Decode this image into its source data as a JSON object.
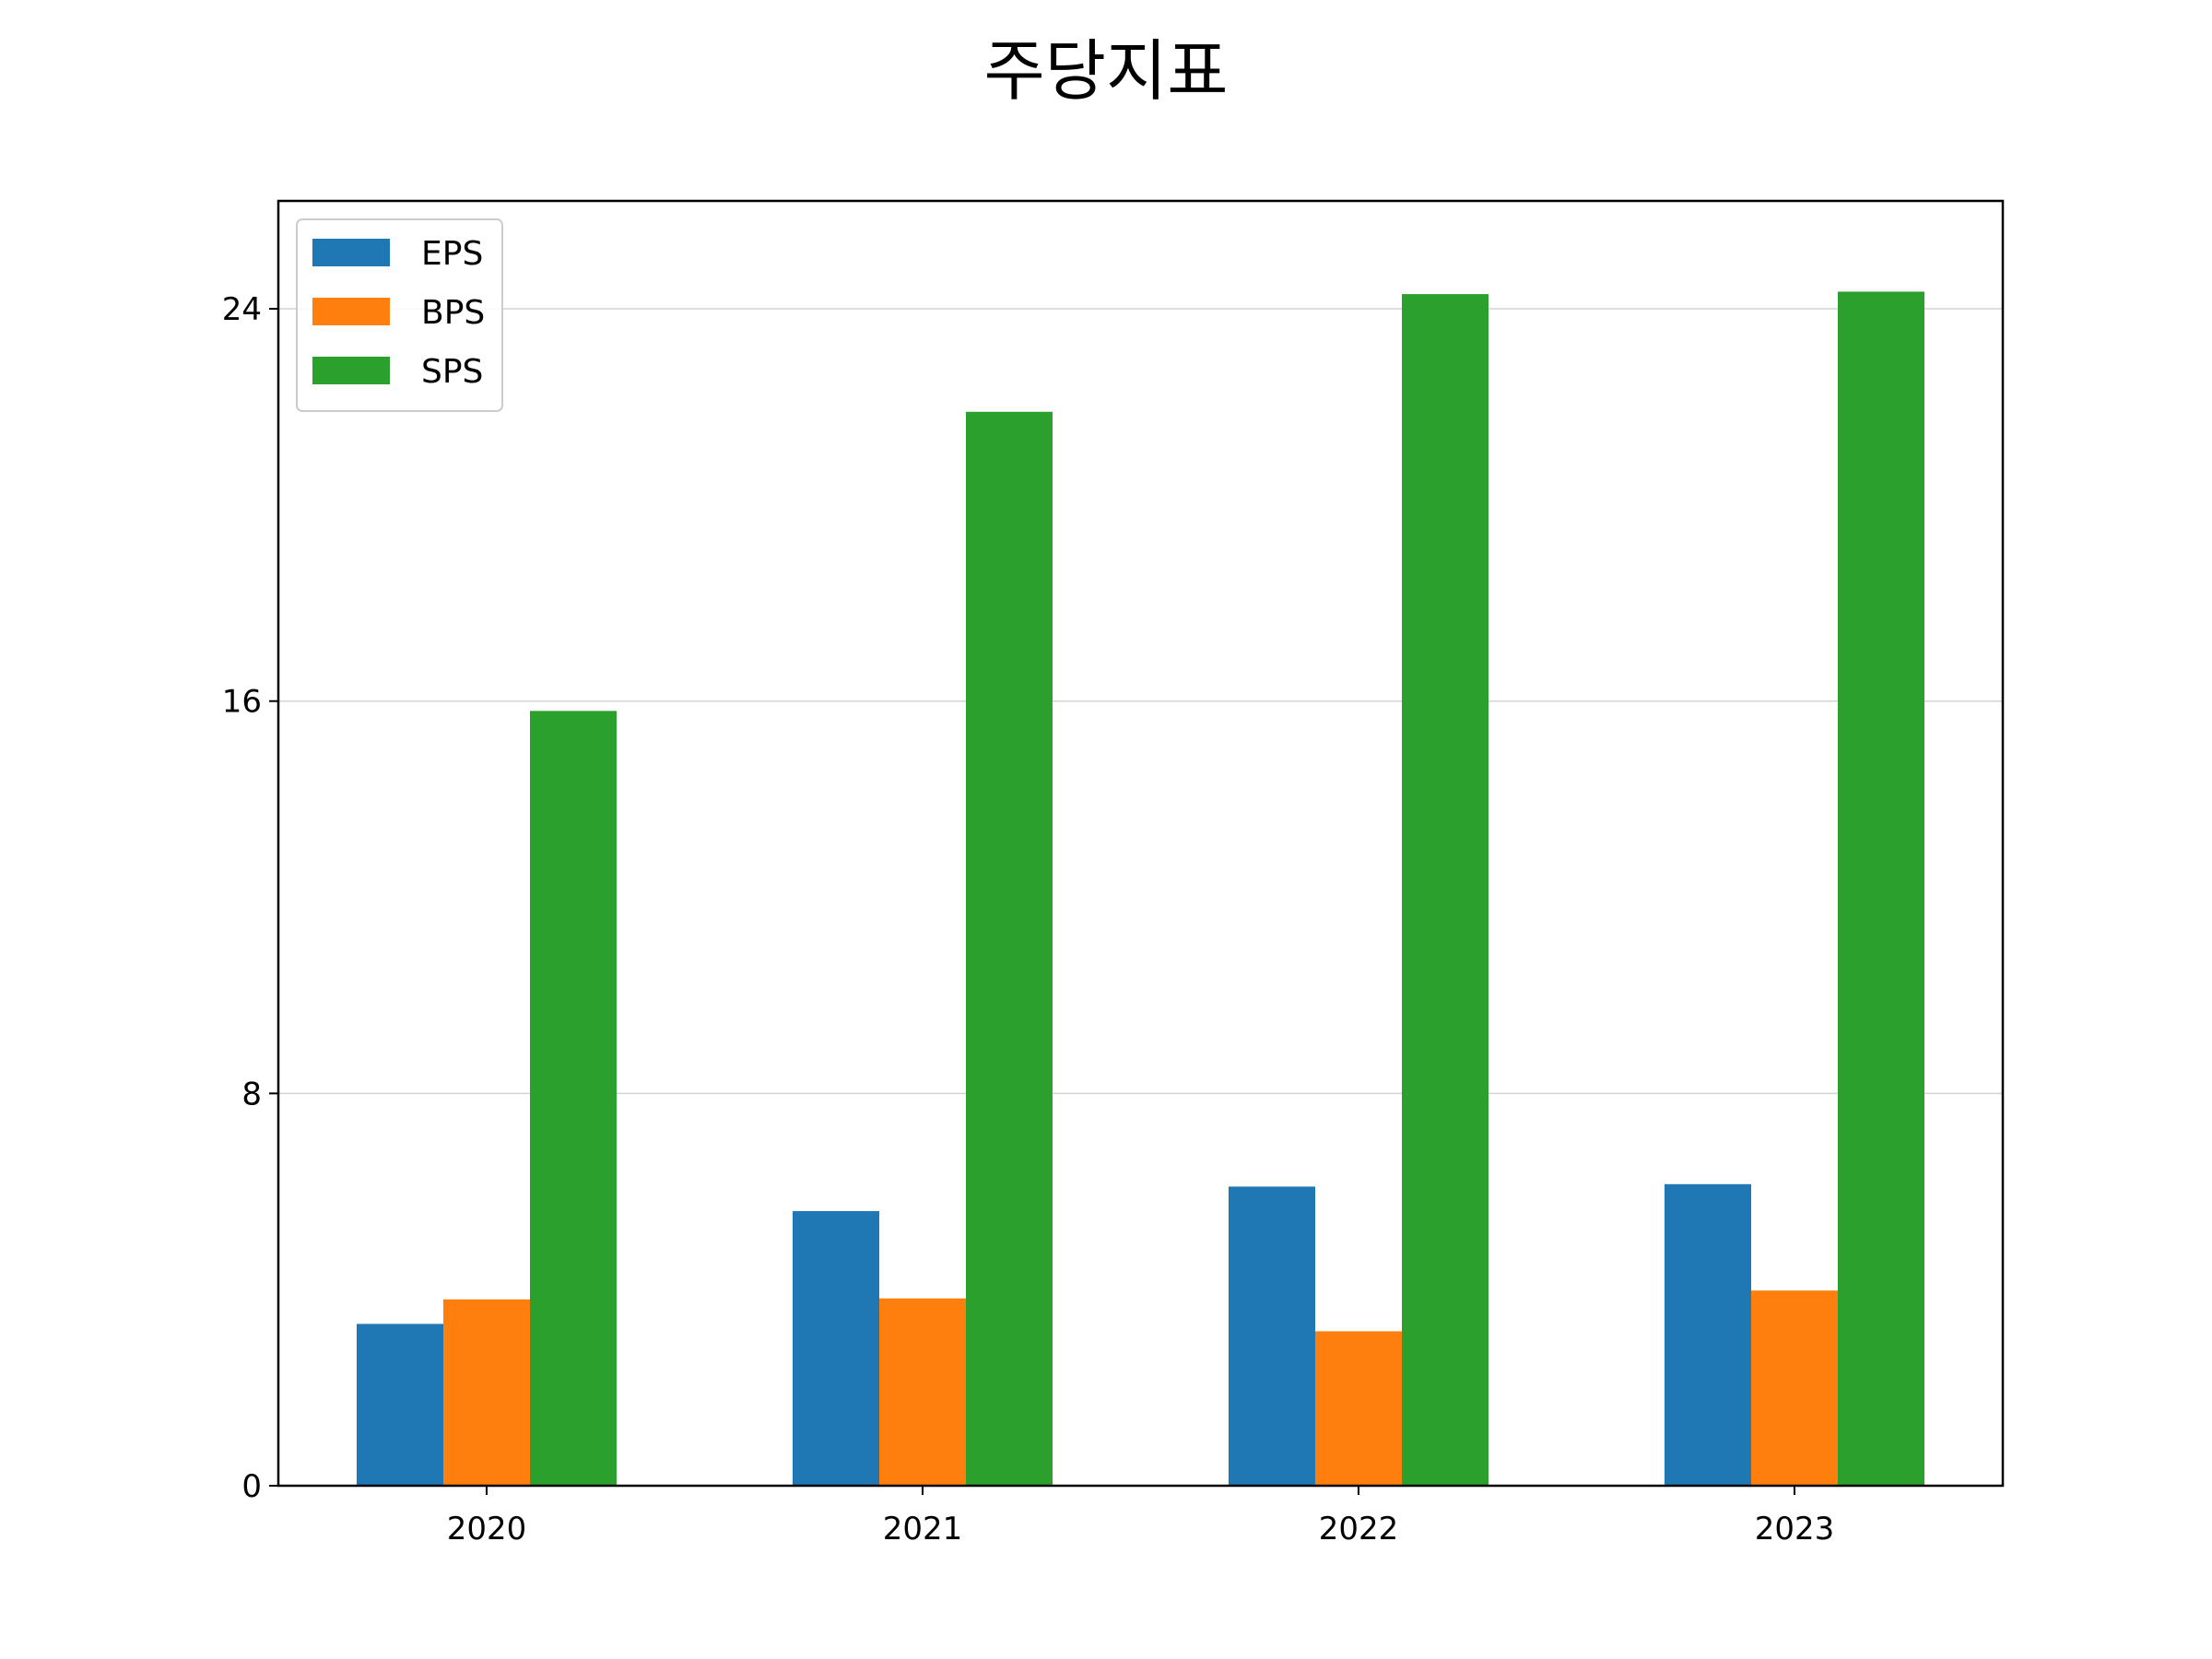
{
  "chart_data": {
    "type": "bar",
    "title": "주당지표",
    "xlabel": "",
    "ylabel": "",
    "categories": [
      "2020",
      "2021",
      "2022",
      "2023"
    ],
    "series": [
      {
        "name": "EPS",
        "values": [
          3.3,
          5.6,
          6.1,
          6.15
        ],
        "color": "#1f77b4"
      },
      {
        "name": "BPS",
        "values": [
          3.8,
          3.82,
          3.15,
          3.98
        ],
        "color": "#ff7f0e"
      },
      {
        "name": "SPS",
        "values": [
          15.8,
          21.9,
          24.3,
          24.35
        ],
        "color": "#2ca02c"
      }
    ],
    "ylim": [
      0,
      26.2
    ],
    "yticks": [
      0,
      8,
      16,
      24
    ],
    "grid": "horizontal",
    "legend": "top-left"
  }
}
